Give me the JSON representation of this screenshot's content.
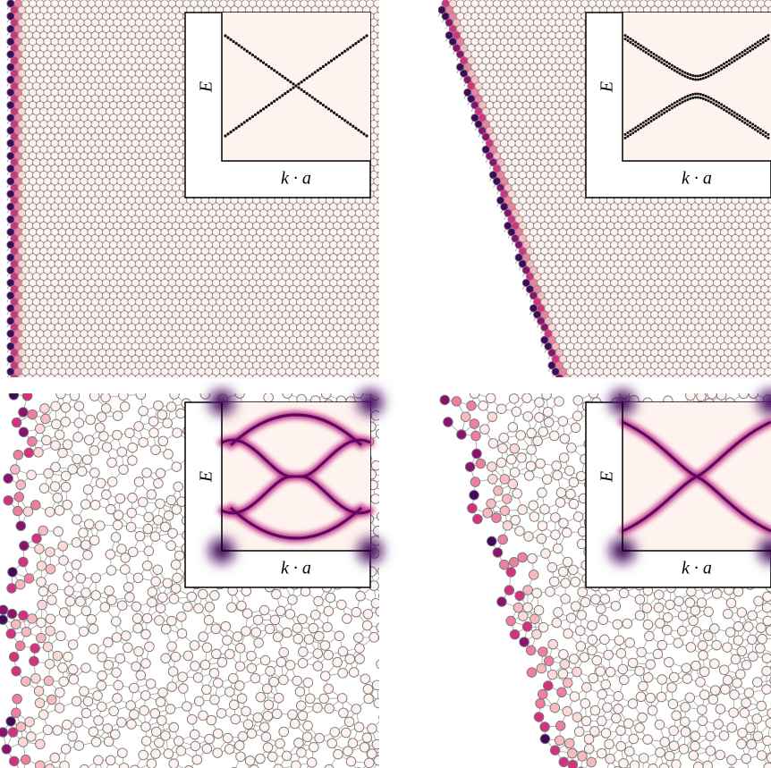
{
  "panels": [
    {
      "inset": {
        "y_label": "E",
        "x_label": "k · a"
      }
    },
    {
      "inset": {
        "y_label": "E",
        "x_label": "k · a"
      }
    },
    {
      "inset": {
        "y_label": "E",
        "x_label": "k · a"
      }
    },
    {
      "inset": {
        "y_label": "E",
        "x_label": "k · a"
      }
    }
  ]
}
